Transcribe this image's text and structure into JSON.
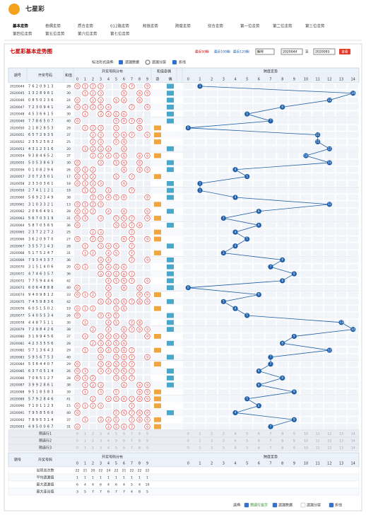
{
  "header": {
    "logo": "七星彩"
  },
  "nav": [
    "基本走势",
    "奇偶走势",
    "质合走势",
    "012路走势",
    "和值走势",
    "跨度走势",
    "综合走势",
    "第一位走势",
    "第二位走势",
    "第三位走势",
    "第四位走势",
    "第五位走势",
    "第六位走势",
    "第七位走势"
  ],
  "panel": {
    "title": "七星彩基本走势图",
    "range_links": [
      "最近50期",
      "最近100期",
      "最近120期"
    ],
    "select": "期号",
    "from": "2020044",
    "to_label": "至",
    "to": "2020093",
    "button": "查看"
  },
  "controls": {
    "label": "标注形式选择:",
    "options": [
      "遗漏数据",
      "遗漏分层",
      "折线"
    ]
  },
  "table": {
    "headers": {
      "period": "期号",
      "numbers": "开奖号码",
      "sum": "和值",
      "dist": "开奖号码分布",
      "parity": "和值奇偶",
      "odd": "奇",
      "even": "偶",
      "trend": "跨度走势"
    },
    "digits": [
      0,
      1,
      2,
      3,
      4,
      5,
      6,
      7,
      8,
      9
    ],
    "trend_ticks": [
      0,
      1,
      2,
      3,
      4,
      5,
      6,
      7,
      8,
      9,
      10,
      11,
      12,
      13,
      14
    ],
    "rows": [
      [
        "2020044",
        "7620913",
        28,
        1
      ],
      [
        "2020045",
        "1328961",
        30,
        14
      ],
      [
        "2020046",
        "0850236",
        24,
        12
      ],
      [
        "2020047",
        "7230941",
        26,
        8
      ],
      [
        "2020048",
        "4536615",
        30,
        5
      ],
      [
        "2020049",
        "7786507",
        40,
        7
      ],
      [
        "2020050",
        "2182853",
        29,
        0
      ],
      [
        "2020051",
        "6572935",
        37,
        11
      ],
      [
        "2020052",
        "2352562",
        25,
        11
      ],
      [
        "2020053",
        "4312316",
        20,
        12
      ],
      [
        "2020054",
        "9384652",
        37,
        10
      ],
      [
        "2020055",
        "5053863",
        30,
        12
      ],
      [
        "2020056",
        "0108296",
        26,
        4
      ],
      [
        "2020057",
        "2072501",
        17,
        5
      ],
      [
        "2020058",
        "2330361",
        18,
        1
      ],
      [
        "2020059",
        "2741121",
        18,
        1
      ],
      [
        "2020060",
        "5692349",
        38,
        4
      ],
      [
        "2020061",
        "3103321",
        13,
        12
      ],
      [
        "2020062",
        "2066491",
        28,
        6
      ],
      [
        "2020063",
        "5670319",
        31,
        3
      ],
      [
        "2020064",
        "5870565",
        36,
        6
      ],
      [
        "2020065",
        "2372272",
        25,
        4
      ],
      [
        "2020066",
        "3620970",
        27,
        5
      ],
      [
        "2020067",
        "3557143",
        28,
        4
      ],
      [
        "2020068",
        "5175247",
        31,
        3
      ],
      [
        "2020069",
        "7934337",
        36,
        8
      ],
      [
        "2020070",
        "3151406",
        20,
        7
      ],
      [
        "2020071",
        "4746357",
        36,
        9
      ],
      [
        "2020072",
        "7759446",
        42,
        8
      ],
      [
        "2020073",
        "6064888",
        40,
        0
      ],
      [
        "2020074",
        "9409812",
        33,
        6
      ],
      [
        "2020075",
        "7459836",
        42,
        3
      ],
      [
        "2020076",
        "6051502",
        19,
        4
      ],
      [
        "2020077",
        "5405534",
        26,
        5
      ],
      [
        "2020078",
        "4487511",
        30,
        13
      ],
      [
        "2020079",
        "7298426",
        38,
        14
      ],
      [
        "2020080",
        "3199456",
        37,
        9
      ],
      [
        "2020081",
        "4233556",
        28,
        8
      ],
      [
        "2020082",
        "5713643",
        29,
        12
      ],
      [
        "2020083",
        "5956753",
        40,
        7
      ],
      [
        "2020084",
        "5364407",
        29,
        7
      ],
      [
        "2020085",
        "6370514",
        26,
        6
      ],
      [
        "2020086",
        "7065127",
        28,
        8
      ],
      [
        "2020087",
        "3992861",
        38,
        6
      ],
      [
        "2020088",
        "9518583",
        39,
        9
      ],
      [
        "2020089",
        "5792846",
        41,
        5
      ],
      [
        "2020090",
        "7101123",
        15,
        6
      ],
      [
        "2020091",
        "7958560",
        40,
        4
      ],
      [
        "2020092",
        "7895314",
        37,
        9
      ],
      [
        "2020093",
        "4950067",
        31,
        7
      ]
    ],
    "preselect": [
      "预选行1",
      "预选行2",
      "预选行3"
    ],
    "stats": {
      "labels": [
        "出现总次数",
        "平均遗漏值",
        "最大遗漏值",
        "最大连出值"
      ],
      "values": [
        [
          22,
          21,
          20,
          22,
          24,
          22,
          21,
          22,
          22,
          22
        ],
        [
          1,
          1,
          1,
          1,
          1,
          1,
          1,
          1,
          1,
          1
        ],
        [
          6,
          4,
          4,
          6,
          4,
          6,
          4,
          5,
          4,
          10
        ],
        [
          3,
          5,
          7,
          7,
          6,
          7,
          7,
          4,
          8,
          5
        ]
      ]
    }
  },
  "footer": {
    "label": "选择:",
    "options": [
      "预选行显示",
      "遗漏数据",
      "遗漏分层",
      "折线"
    ]
  }
}
